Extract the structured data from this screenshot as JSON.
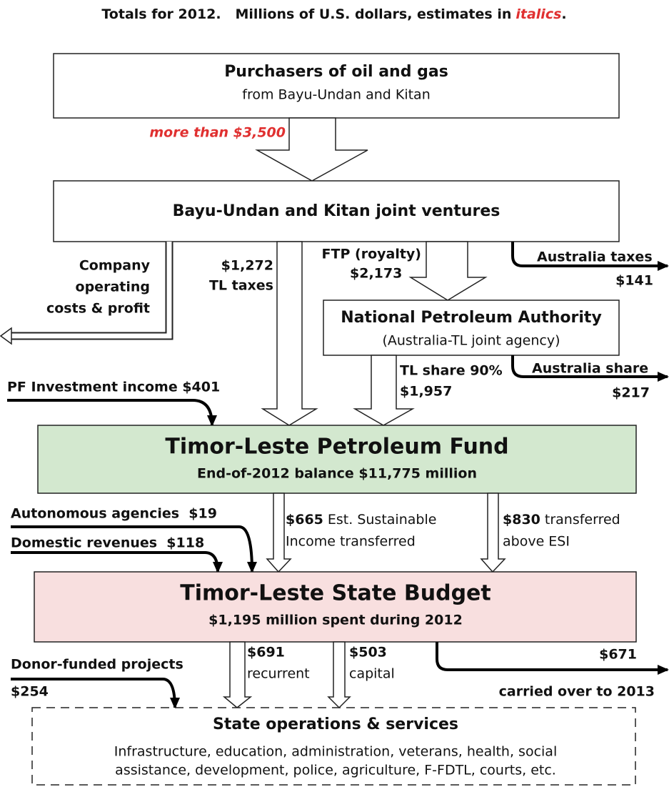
{
  "header": {
    "text": "Totals for 2012.   Millions of U.S. dollars, estimates in",
    "emphasis": "italics",
    "end": "."
  },
  "nodes": {
    "purchasers": {
      "title": "Purchasers of oil and gas",
      "subtitle": "from Bayu-Undan and Kitan"
    },
    "joint_ventures": {
      "title": "Bayu-Undan and Kitan joint ventures"
    },
    "npa": {
      "title": "National Petroleum Authority",
      "subtitle": "(Australia-TL joint agency)"
    },
    "petroleum_fund": {
      "title": "Timor-Leste Petroleum Fund",
      "subtitle": "End-of-2012 balance $11,775 million"
    },
    "state_budget": {
      "title": "Timor-Leste State Budget",
      "subtitle": "$1,195 million spent during 2012"
    },
    "state_operations": {
      "title": "State operations & services",
      "lines": [
        "Infrastructure, education, administration, veterans, health, social",
        "assistance, development, police, agriculture, F-FDTL, courts, etc."
      ]
    }
  },
  "flows": {
    "sales": {
      "label": "more than $3,500"
    },
    "company": {
      "lines": [
        "Company",
        "operating",
        "costs & profit"
      ]
    },
    "tl_taxes": {
      "amount": "$1,272",
      "label": "TL taxes"
    },
    "ftp": {
      "label": "FTP (royalty)",
      "amount": "$2,173"
    },
    "australia_taxes": {
      "label": "Australia taxes",
      "amount": "$141"
    },
    "tl_share": {
      "label": "TL share 90%",
      "amount": "$1,957"
    },
    "australia_share": {
      "label": "Australia share",
      "amount": "$217"
    },
    "pf_investment": {
      "label": "PF Investment income $401"
    },
    "esi": {
      "amount": "$665",
      "lines": [
        "Est. Sustainable",
        "Income transferred"
      ]
    },
    "above_esi": {
      "amount": "$830",
      "lines": [
        "transferred",
        "above ESI"
      ]
    },
    "autonomous": {
      "label": "Autonomous agencies  $19"
    },
    "domestic": {
      "label": "Domestic revenues  $118"
    },
    "recurrent": {
      "amount": "$691",
      "label": "recurrent"
    },
    "capital": {
      "amount": "$503",
      "label": "capital"
    },
    "carryover": {
      "amount": "$671",
      "label": "carried over to 2013"
    },
    "donor": {
      "label": "Donor-funded projects",
      "amount": "$254"
    }
  }
}
